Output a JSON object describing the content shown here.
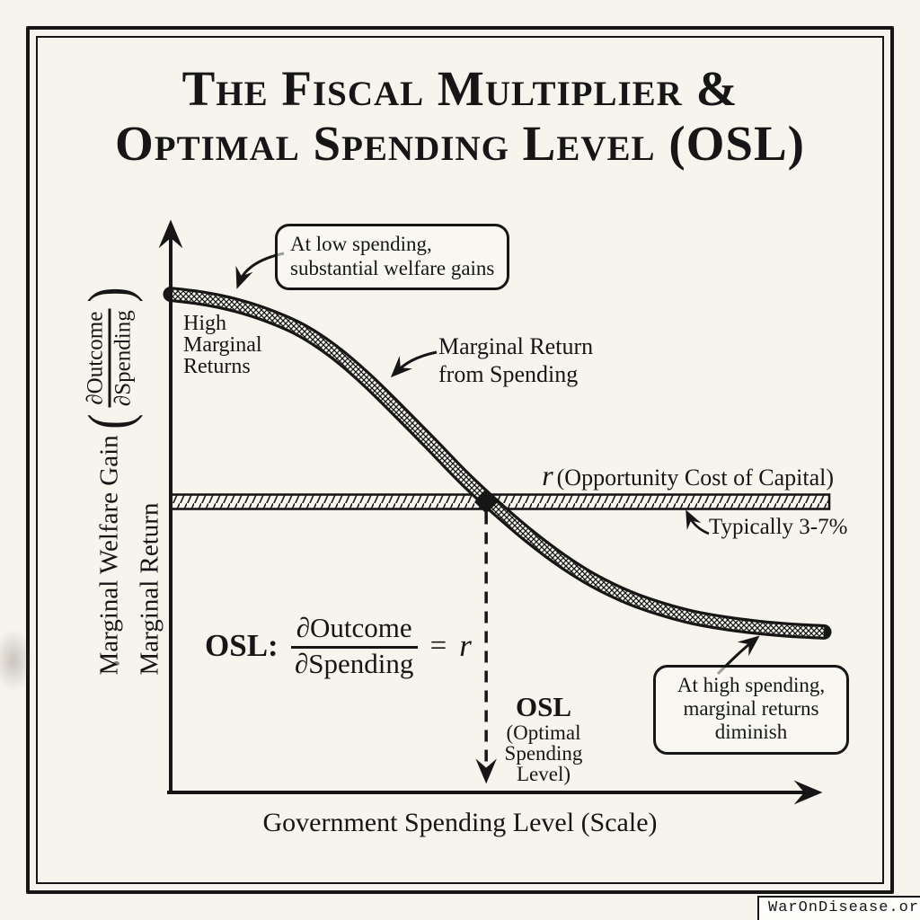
{
  "colors": {
    "ink": "#161616",
    "paper": "#f7f4ee",
    "band_fill": "#ffffff"
  },
  "title": {
    "line1": "The Fiscal Multiplier &",
    "line2": "Optimal Spending Level (OSL)"
  },
  "y_axis_label": {
    "main": "Marginal Welfare Gain",
    "paren_open": "(",
    "frac_top": "∂Outcome",
    "frac_bottom": "∂Spending",
    "paren_close": ")",
    "line2": "Marginal Return"
  },
  "x_axis_label": "Government Spending Level (Scale)",
  "labels": {
    "high_marginal": {
      "l1": "High",
      "l2": "Marginal",
      "l3": "Returns"
    },
    "curve": {
      "l1": "Marginal Return",
      "l2": "from Spending"
    },
    "r_line": {
      "symbol": "r",
      "rest": "(Opportunity Cost of Capital)"
    },
    "r_typical": "Typically 3-7%",
    "osl_tick": {
      "title": "OSL",
      "sub1": "(Optimal",
      "sub2": "Spending",
      "sub3": "Level)"
    }
  },
  "callouts": {
    "low": {
      "l1": "At low spending,",
      "l2": "substantial welfare gains"
    },
    "high": {
      "l1": "At high spending,",
      "l2": "marginal returns",
      "l3": "diminish"
    }
  },
  "formula": {
    "prefix": "OSL:",
    "num": "∂Outcome",
    "den": "∂Spending",
    "eq": "=",
    "rhs": "r"
  },
  "badge": "WarOnDisease.org",
  "chart_data": {
    "type": "line",
    "title": "The Fiscal Multiplier & Optimal Spending Level (OSL)",
    "xlabel": "Government Spending Level (Scale)",
    "ylabel": "Marginal Welfare Gain (∂Outcome/∂Spending), Marginal Return",
    "x_range": [
      0,
      1
    ],
    "y_range": [
      0,
      1
    ],
    "grid": false,
    "axes_numeric": false,
    "series": [
      {
        "name": "Marginal Return from Spending",
        "style": "crosshatched-band-sigmoid-decreasing",
        "points": [
          [
            0,
            0.857
          ],
          [
            0.05,
            0.85
          ],
          [
            0.1,
            0.838
          ],
          [
            0.15,
            0.82
          ],
          [
            0.2,
            0.795
          ],
          [
            0.25,
            0.758
          ],
          [
            0.3,
            0.71
          ],
          [
            0.35,
            0.655
          ],
          [
            0.4,
            0.598
          ],
          [
            0.45,
            0.54
          ],
          [
            0.5,
            0.488
          ],
          [
            0.55,
            0.44
          ],
          [
            0.6,
            0.398
          ],
          [
            0.65,
            0.363
          ],
          [
            0.7,
            0.336
          ],
          [
            0.75,
            0.316
          ],
          [
            0.8,
            0.301
          ],
          [
            0.85,
            0.291
          ],
          [
            0.9,
            0.284
          ],
          [
            0.95,
            0.279
          ],
          [
            1,
            0.276
          ]
        ]
      },
      {
        "name": "r (Opportunity Cost of Capital)",
        "style": "hatched-horizontal-band",
        "value": 0.5,
        "note": "Typically 3-7%"
      }
    ],
    "marker": {
      "label": "OSL (Optimal Spending Level)",
      "x": 0.483,
      "y": 0.5
    }
  }
}
